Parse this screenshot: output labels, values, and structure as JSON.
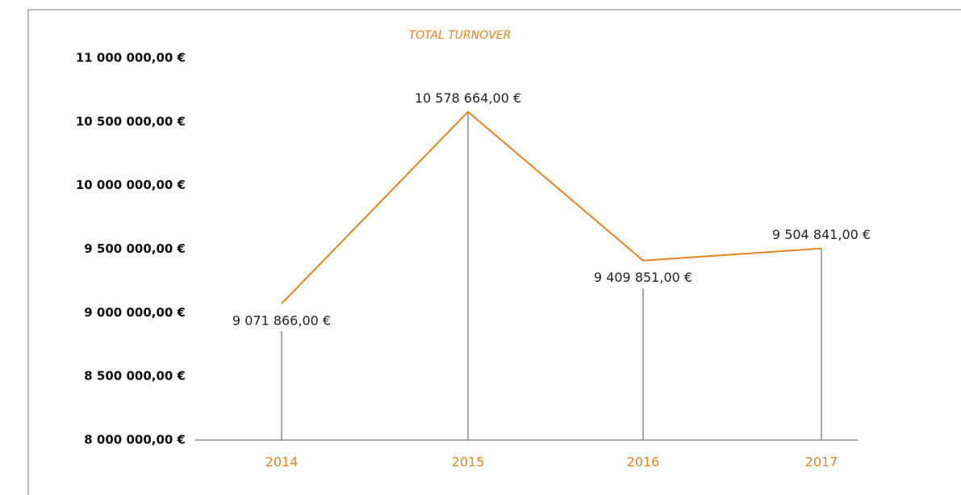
{
  "chart_data": {
    "type": "line",
    "title": "TOTAL TURNOVER",
    "categories": [
      "2014",
      "2015",
      "2016",
      "2017"
    ],
    "series": [
      {
        "color": "#e8821e",
        "values": [
          9071866,
          10578664,
          9409851,
          9504841
        ],
        "value_labels": [
          "9 071 866,00 €",
          "10 578 664,00 €",
          "9 409 851,00 €",
          "9 504 841,00 €"
        ]
      }
    ],
    "ylim": [
      8000000,
      11000000
    ],
    "yticks": [
      {
        "value": 8000000,
        "label": "8 000 000,00 €"
      },
      {
        "value": 8500000,
        "label": "8 500 000,00 €"
      },
      {
        "value": 9000000,
        "label": "9 000 000,00 €"
      },
      {
        "value": 9500000,
        "label": "9 500 000,00 €"
      },
      {
        "value": 10000000,
        "label": "10 000 000,00 €"
      },
      {
        "value": 10500000,
        "label": "10 500 000,00 €"
      },
      {
        "value": 11000000,
        "label": "11 000 000,00 €"
      }
    ]
  }
}
